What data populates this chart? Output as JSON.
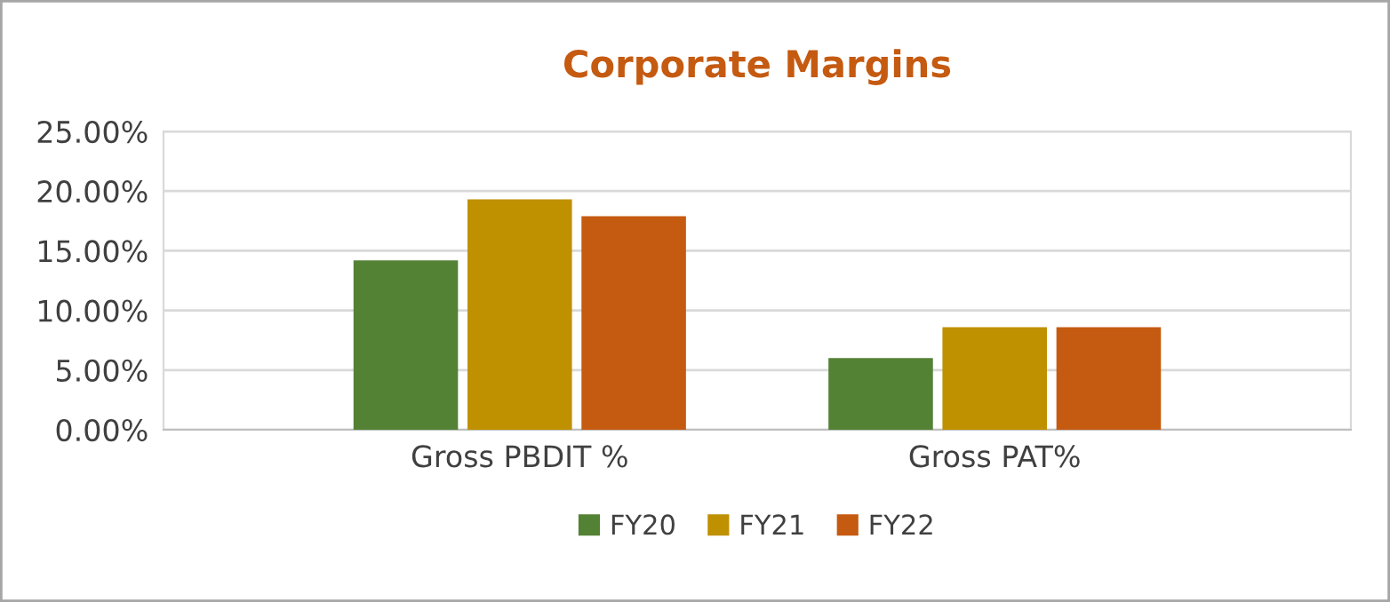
{
  "chart_data": {
    "type": "bar",
    "title": "Corporate Margins",
    "categories": [
      "Gross PBDIT %",
      "Gross PAT%"
    ],
    "series": [
      {
        "name": "FY20",
        "color": "#548235",
        "values": [
          14.2,
          6.0
        ]
      },
      {
        "name": "FY21",
        "color": "#bf9000",
        "values": [
          19.3,
          8.6
        ]
      },
      {
        "name": "FY22",
        "color": "#c55a11",
        "values": [
          17.9,
          8.6
        ]
      }
    ],
    "ylim": [
      0,
      25
    ],
    "yticks": [
      {
        "value": 0,
        "label": "0.00%"
      },
      {
        "value": 5,
        "label": "5.00%"
      },
      {
        "value": 10,
        "label": "10.00%"
      },
      {
        "value": 15,
        "label": "15.00%"
      },
      {
        "value": 20,
        "label": "20.00%"
      },
      {
        "value": 25,
        "label": "25.00%"
      }
    ],
    "grid": "y",
    "legend": "bottom"
  }
}
